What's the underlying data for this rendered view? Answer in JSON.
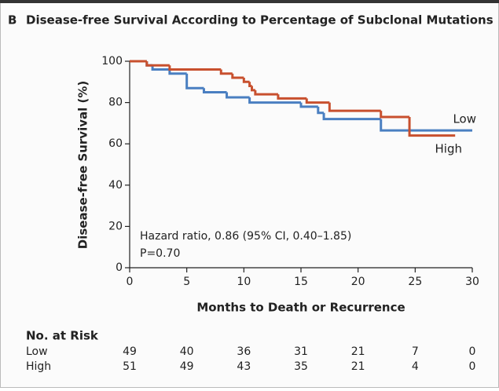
{
  "chart_data": {
    "type": "step",
    "panel": "B",
    "title": "Disease-free Survival According to Percentage of Subclonal Mutations",
    "x_label": "Months to Death or Recurrence",
    "y_label": "Disease-free Survival  (%)",
    "xlim": [
      0,
      30
    ],
    "xticks": [
      0,
      5,
      10,
      15,
      20,
      25,
      30
    ],
    "ylim": [
      0,
      100
    ],
    "yticks": [
      0,
      20,
      40,
      60,
      80,
      100
    ],
    "series": [
      {
        "name": "Low",
        "color": "#4a7fc1",
        "x": [
          0,
          1.5,
          2,
          3.5,
          5,
          6.5,
          8.5,
          10.5,
          15,
          16.5,
          17,
          22,
          30
        ],
        "values": [
          100,
          98,
          96,
          94,
          87,
          85,
          82.5,
          80,
          78,
          75,
          72,
          66.5,
          66.5
        ]
      },
      {
        "name": "High",
        "color": "#c8502e",
        "x": [
          0,
          1.5,
          3.5,
          8,
          9,
          10,
          10.5,
          10.7,
          11,
          13,
          15.5,
          17.5,
          22,
          24.5,
          28.5
        ],
        "values": [
          100,
          98,
          96,
          94,
          92,
          90,
          88,
          86,
          84,
          82,
          80,
          76,
          73,
          64,
          64
        ]
      }
    ],
    "annotations": [
      "Hazard ratio, 0.86 (95% CI, 0.40–1.85)",
      "P=0.70"
    ],
    "risk_table": {
      "title": "No. at Risk",
      "rows": [
        {
          "name": "Low",
          "values": [
            49,
            40,
            36,
            31,
            21,
            7,
            0
          ]
        },
        {
          "name": "High",
          "values": [
            51,
            49,
            43,
            35,
            21,
            4,
            0
          ]
        }
      ]
    }
  }
}
